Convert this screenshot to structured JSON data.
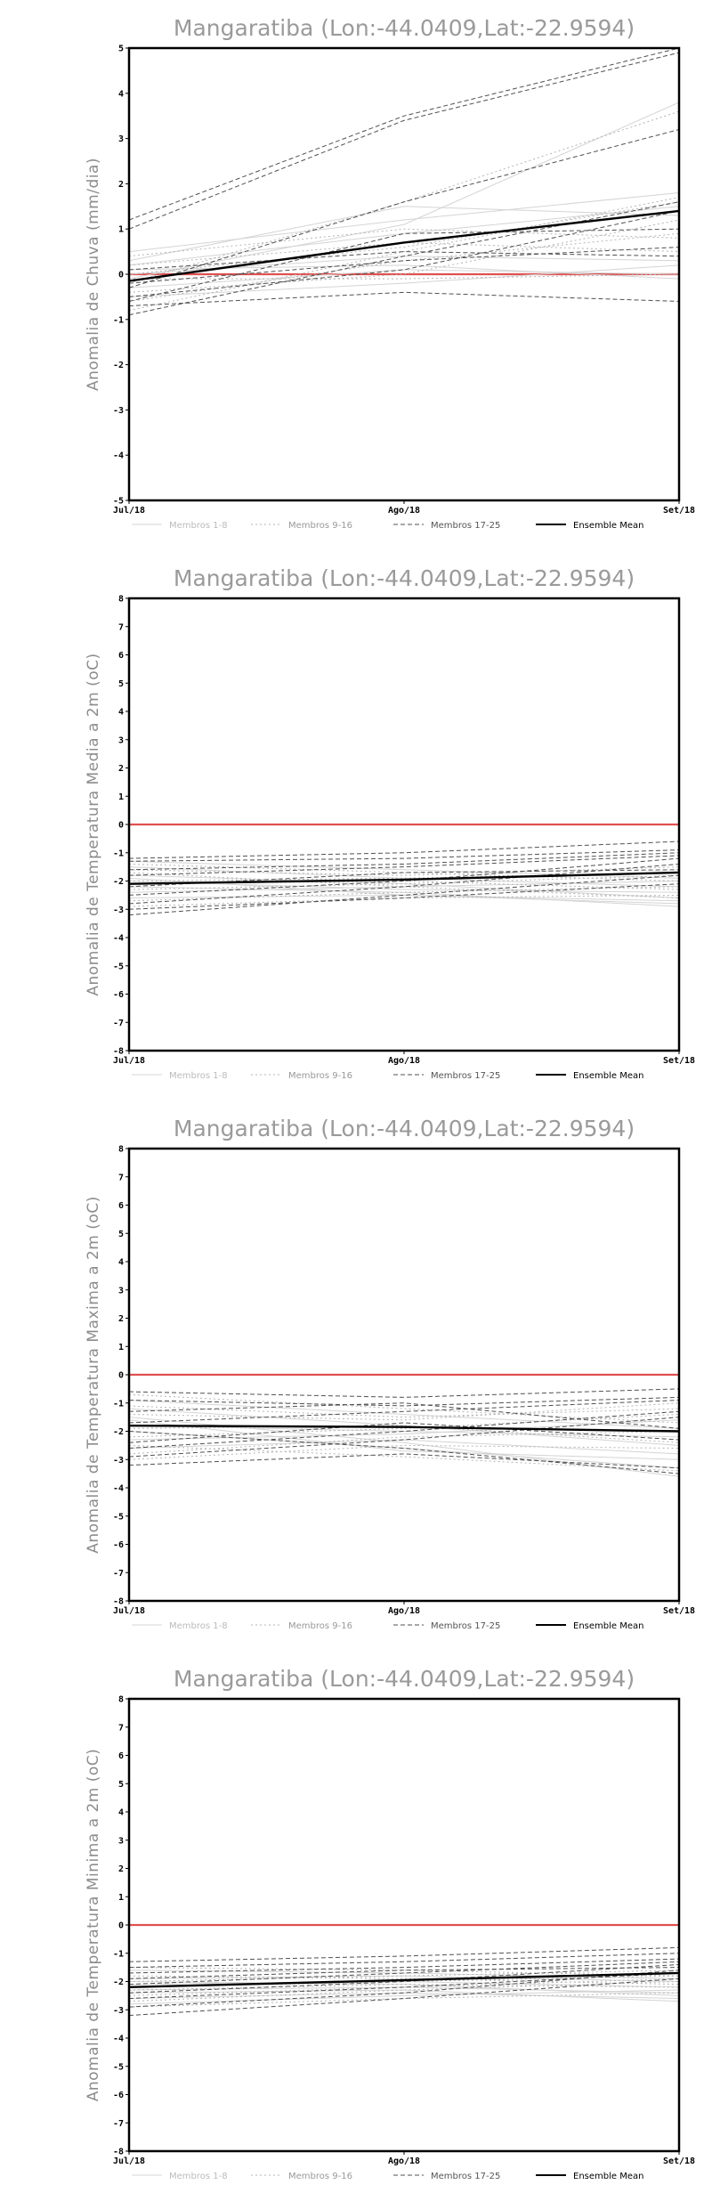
{
  "chart_data": [
    {
      "type": "line",
      "title": "Mangaratiba (Lon:-44.0409,Lat:-22.9594)",
      "ylabel": "Anomalia de Chuva (mm/dia)",
      "categories": [
        "Jul/18",
        "Ago/18",
        "Set/18"
      ],
      "ylim": [
        -5,
        5
      ],
      "yticks": [
        5,
        4,
        3,
        2,
        1,
        0,
        -1,
        -2,
        -3,
        -4,
        -5
      ],
      "grid": false,
      "legend_position": "bottom",
      "zero_line_color": "#e05050",
      "legend": [
        {
          "label": "Membros 1-8",
          "color": "#d4d4d4",
          "dash": "solid"
        },
        {
          "label": "Membros 9-16",
          "color": "#b4b4b4",
          "dash": "dotted"
        },
        {
          "label": "Membros 17-25",
          "color": "#505050",
          "dash": "dashed"
        },
        {
          "label": "Ensemble Mean",
          "color": "#000000",
          "dash": "solid"
        }
      ],
      "series": [
        {
          "group": 0,
          "values": [
            0.5,
            1.2,
            1.8
          ]
        },
        {
          "group": 0,
          "values": [
            0.2,
            0.9,
            1.5
          ]
        },
        {
          "group": 0,
          "values": [
            -0.1,
            1.1,
            3.8
          ]
        },
        {
          "group": 0,
          "values": [
            0.0,
            0.4,
            0.3
          ]
        },
        {
          "group": 0,
          "values": [
            -0.3,
            0.1,
            0.0
          ]
        },
        {
          "group": 0,
          "values": [
            0.3,
            1.5,
            1.3
          ]
        },
        {
          "group": 0,
          "values": [
            -0.5,
            -0.2,
            0.2
          ]
        },
        {
          "group": 0,
          "values": [
            0.1,
            0.2,
            -0.1
          ]
        },
        {
          "group": 1,
          "values": [
            -0.2,
            1.6,
            3.6
          ]
        },
        {
          "group": 1,
          "values": [
            0.0,
            0.6,
            1.6
          ]
        },
        {
          "group": 1,
          "values": [
            -0.6,
            0.3,
            0.9
          ]
        },
        {
          "group": 1,
          "values": [
            0.2,
            0.7,
            0.5
          ]
        },
        {
          "group": 1,
          "values": [
            -0.4,
            0.0,
            1.2
          ]
        },
        {
          "group": 1,
          "values": [
            0.4,
            1.0,
            0.8
          ]
        },
        {
          "group": 1,
          "values": [
            -0.1,
            -0.1,
            0.0
          ]
        },
        {
          "group": 1,
          "values": [
            -0.8,
            0.5,
            1.7
          ]
        },
        {
          "group": 2,
          "values": [
            1.2,
            3.5,
            5.0
          ]
        },
        {
          "group": 2,
          "values": [
            1.0,
            3.4,
            4.9
          ]
        },
        {
          "group": 2,
          "values": [
            -0.3,
            1.6,
            3.2
          ]
        },
        {
          "group": 2,
          "values": [
            -0.9,
            0.4,
            1.6
          ]
        },
        {
          "group": 2,
          "values": [
            -0.7,
            -0.4,
            -0.6
          ]
        },
        {
          "group": 2,
          "values": [
            -0.5,
            0.1,
            1.4
          ]
        },
        {
          "group": 2,
          "values": [
            -0.2,
            0.3,
            0.6
          ]
        },
        {
          "group": 2,
          "values": [
            -0.6,
            0.9,
            1.0
          ]
        },
        {
          "group": 2,
          "values": [
            0.1,
            0.5,
            0.4
          ]
        },
        {
          "group": 3,
          "values": [
            -0.15,
            0.7,
            1.4
          ]
        }
      ]
    },
    {
      "type": "line",
      "title": "Mangaratiba (Lon:-44.0409,Lat:-22.9594)",
      "ylabel": "Anomalia de Temperatura Media a 2m (oC)",
      "categories": [
        "Jul/18",
        "Ago/18",
        "Set/18"
      ],
      "ylim": [
        -8,
        8
      ],
      "yticks": [
        8,
        7,
        6,
        5,
        4,
        3,
        2,
        1,
        0,
        -1,
        -2,
        -3,
        -4,
        -5,
        -6,
        -7,
        -8
      ],
      "grid": false,
      "legend_position": "bottom",
      "zero_line_color": "#e05050",
      "legend": [
        {
          "label": "Membros 1-8",
          "color": "#d4d4d4",
          "dash": "solid"
        },
        {
          "label": "Membros 9-16",
          "color": "#b4b4b4",
          "dash": "dotted"
        },
        {
          "label": "Membros 17-25",
          "color": "#505050",
          "dash": "dashed"
        },
        {
          "label": "Ensemble Mean",
          "color": "#000000",
          "dash": "solid"
        }
      ],
      "series": [
        {
          "group": 0,
          "values": [
            -1.8,
            -2.1,
            -2.6
          ]
        },
        {
          "group": 0,
          "values": [
            -2.2,
            -2.4,
            -2.9
          ]
        },
        {
          "group": 0,
          "values": [
            -1.5,
            -1.9,
            -2.2
          ]
        },
        {
          "group": 0,
          "values": [
            -2.6,
            -2.5,
            -2.7
          ]
        },
        {
          "group": 0,
          "values": [
            -2.0,
            -2.3,
            -2.4
          ]
        },
        {
          "group": 0,
          "values": [
            -1.3,
            -1.6,
            -1.9
          ]
        },
        {
          "group": 0,
          "values": [
            -2.4,
            -2.2,
            -2.0
          ]
        },
        {
          "group": 0,
          "values": [
            -1.9,
            -2.5,
            -2.8
          ]
        },
        {
          "group": 1,
          "values": [
            -2.1,
            -2.0,
            -2.3
          ]
        },
        {
          "group": 1,
          "values": [
            -1.6,
            -1.8,
            -1.5
          ]
        },
        {
          "group": 1,
          "values": [
            -2.7,
            -2.4,
            -2.2
          ]
        },
        {
          "group": 1,
          "values": [
            -2.3,
            -2.1,
            -1.8
          ]
        },
        {
          "group": 1,
          "values": [
            -1.4,
            -1.7,
            -2.0
          ]
        },
        {
          "group": 1,
          "values": [
            -2.9,
            -2.6,
            -2.5
          ]
        },
        {
          "group": 1,
          "values": [
            -2.0,
            -1.9,
            -1.7
          ]
        },
        {
          "group": 1,
          "values": [
            -1.7,
            -2.2,
            -2.6
          ]
        },
        {
          "group": 2,
          "values": [
            -1.2,
            -1.0,
            -0.6
          ]
        },
        {
          "group": 2,
          "values": [
            -1.3,
            -1.2,
            -0.9
          ]
        },
        {
          "group": 2,
          "values": [
            -2.8,
            -2.2,
            -1.4
          ]
        },
        {
          "group": 2,
          "values": [
            -3.2,
            -2.5,
            -1.8
          ]
        },
        {
          "group": 2,
          "values": [
            -2.5,
            -2.0,
            -1.2
          ]
        },
        {
          "group": 2,
          "values": [
            -1.8,
            -1.5,
            -1.1
          ]
        },
        {
          "group": 2,
          "values": [
            -3.0,
            -2.6,
            -2.1
          ]
        },
        {
          "group": 2,
          "values": [
            -2.2,
            -1.7,
            -1.6
          ]
        },
        {
          "group": 2,
          "values": [
            -1.6,
            -1.4,
            -1.0
          ]
        },
        {
          "group": 3,
          "values": [
            -2.1,
            -1.95,
            -1.7
          ]
        }
      ]
    },
    {
      "type": "line",
      "title": "Mangaratiba (Lon:-44.0409,Lat:-22.9594)",
      "ylabel": "Anomalia de Temperatura Maxima a 2m (oC)",
      "categories": [
        "Jul/18",
        "Ago/18",
        "Set/18"
      ],
      "ylim": [
        -8,
        8
      ],
      "yticks": [
        8,
        7,
        6,
        5,
        4,
        3,
        2,
        1,
        0,
        -1,
        -2,
        -3,
        -4,
        -5,
        -6,
        -7,
        -8
      ],
      "grid": false,
      "legend_position": "bottom",
      "zero_line_color": "#e05050",
      "legend": [
        {
          "label": "Membros 1-8",
          "color": "#d4d4d4",
          "dash": "solid"
        },
        {
          "label": "Membros 9-16",
          "color": "#b4b4b4",
          "dash": "dotted"
        },
        {
          "label": "Membros 17-25",
          "color": "#505050",
          "dash": "dashed"
        },
        {
          "label": "Ensemble Mean",
          "color": "#000000",
          "dash": "solid"
        }
      ],
      "series": [
        {
          "group": 0,
          "values": [
            -1.5,
            -2.4,
            -3.6
          ]
        },
        {
          "group": 0,
          "values": [
            -2.0,
            -2.6,
            -3.3
          ]
        },
        {
          "group": 0,
          "values": [
            -1.2,
            -1.8,
            -2.5
          ]
        },
        {
          "group": 0,
          "values": [
            -2.6,
            -2.3,
            -2.8
          ]
        },
        {
          "group": 0,
          "values": [
            -1.8,
            -2.0,
            -2.2
          ]
        },
        {
          "group": 0,
          "values": [
            -0.9,
            -1.4,
            -1.9
          ]
        },
        {
          "group": 0,
          "values": [
            -2.3,
            -2.1,
            -1.6
          ]
        },
        {
          "group": 0,
          "values": [
            -1.6,
            -2.7,
            -3.0
          ]
        },
        {
          "group": 1,
          "values": [
            -1.9,
            -1.8,
            -2.4
          ]
        },
        {
          "group": 1,
          "values": [
            -1.1,
            -1.5,
            -1.2
          ]
        },
        {
          "group": 1,
          "values": [
            -2.8,
            -2.2,
            -2.0
          ]
        },
        {
          "group": 1,
          "values": [
            -2.2,
            -1.9,
            -1.4
          ]
        },
        {
          "group": 1,
          "values": [
            -0.7,
            -1.2,
            -1.7
          ]
        },
        {
          "group": 1,
          "values": [
            -3.0,
            -2.5,
            -2.6
          ]
        },
        {
          "group": 1,
          "values": [
            -1.4,
            -1.6,
            -1.0
          ]
        },
        {
          "group": 1,
          "values": [
            -2.5,
            -2.9,
            -3.4
          ]
        },
        {
          "group": 2,
          "values": [
            -0.6,
            -0.8,
            -0.5
          ]
        },
        {
          "group": 2,
          "values": [
            -0.9,
            -1.1,
            -0.8
          ]
        },
        {
          "group": 2,
          "values": [
            -2.9,
            -2.3,
            -1.5
          ]
        },
        {
          "group": 2,
          "values": [
            -3.2,
            -2.8,
            -3.3
          ]
        },
        {
          "group": 2,
          "values": [
            -2.4,
            -1.7,
            -2.3
          ]
        },
        {
          "group": 2,
          "values": [
            -1.7,
            -1.3,
            -0.9
          ]
        },
        {
          "group": 2,
          "values": [
            -2.0,
            -2.6,
            -3.5
          ]
        },
        {
          "group": 2,
          "values": [
            -1.3,
            -1.0,
            -1.9
          ]
        },
        {
          "group": 2,
          "values": [
            -2.6,
            -2.0,
            -1.3
          ]
        },
        {
          "group": 3,
          "values": [
            -1.8,
            -1.85,
            -2.0
          ]
        }
      ]
    },
    {
      "type": "line",
      "title": "Mangaratiba (Lon:-44.0409,Lat:-22.9594)",
      "ylabel": "Anomalia de Temperatura Minima a 2m (oC)",
      "categories": [
        "Jul/18",
        "Ago/18",
        "Set/18"
      ],
      "ylim": [
        -8,
        8
      ],
      "yticks": [
        8,
        7,
        6,
        5,
        4,
        3,
        2,
        1,
        0,
        -1,
        -2,
        -3,
        -4,
        -5,
        -6,
        -7,
        -8
      ],
      "grid": false,
      "legend_position": "bottom",
      "zero_line_color": "#e05050",
      "legend": [
        {
          "label": "Membros 1-8",
          "color": "#d4d4d4",
          "dash": "solid"
        },
        {
          "label": "Membros 9-16",
          "color": "#b4b4b4",
          "dash": "dotted"
        },
        {
          "label": "Membros 17-25",
          "color": "#505050",
          "dash": "dashed"
        },
        {
          "label": "Ensemble Mean",
          "color": "#000000",
          "dash": "solid"
        }
      ],
      "series": [
        {
          "group": 0,
          "values": [
            -2.3,
            -2.2,
            -2.4
          ]
        },
        {
          "group": 0,
          "values": [
            -2.6,
            -2.4,
            -2.6
          ]
        },
        {
          "group": 0,
          "values": [
            -1.9,
            -1.8,
            -2.0
          ]
        },
        {
          "group": 0,
          "values": [
            -2.8,
            -2.5,
            -2.3
          ]
        },
        {
          "group": 0,
          "values": [
            -2.1,
            -2.0,
            -2.2
          ]
        },
        {
          "group": 0,
          "values": [
            -1.6,
            -1.7,
            -1.9
          ]
        },
        {
          "group": 0,
          "values": [
            -2.4,
            -2.3,
            -2.7
          ]
        },
        {
          "group": 0,
          "values": [
            -2.0,
            -2.1,
            -2.5
          ]
        },
        {
          "group": 1,
          "values": [
            -2.2,
            -2.0,
            -1.8
          ]
        },
        {
          "group": 1,
          "values": [
            -1.8,
            -1.9,
            -2.1
          ]
        },
        {
          "group": 1,
          "values": [
            -2.7,
            -2.3,
            -2.0
          ]
        },
        {
          "group": 1,
          "values": [
            -2.5,
            -2.2,
            -1.9
          ]
        },
        {
          "group": 1,
          "values": [
            -1.5,
            -1.6,
            -1.8
          ]
        },
        {
          "group": 1,
          "values": [
            -2.9,
            -2.6,
            -2.4
          ]
        },
        {
          "group": 1,
          "values": [
            -2.0,
            -1.8,
            -1.6
          ]
        },
        {
          "group": 1,
          "values": [
            -2.3,
            -2.1,
            -2.2
          ]
        },
        {
          "group": 2,
          "values": [
            -1.3,
            -1.1,
            -0.8
          ]
        },
        {
          "group": 2,
          "values": [
            -1.5,
            -1.3,
            -1.0
          ]
        },
        {
          "group": 2,
          "values": [
            -3.2,
            -2.6,
            -1.9
          ]
        },
        {
          "group": 2,
          "values": [
            -2.9,
            -2.4,
            -1.6
          ]
        },
        {
          "group": 2,
          "values": [
            -2.4,
            -2.0,
            -1.4
          ]
        },
        {
          "group": 2,
          "values": [
            -1.7,
            -1.5,
            -1.2
          ]
        },
        {
          "group": 2,
          "values": [
            -2.6,
            -2.2,
            -1.7
          ]
        },
        {
          "group": 2,
          "values": [
            -2.1,
            -1.7,
            -1.3
          ]
        },
        {
          "group": 2,
          "values": [
            -1.9,
            -1.6,
            -1.5
          ]
        },
        {
          "group": 3,
          "values": [
            -2.2,
            -1.95,
            -1.7
          ]
        }
      ]
    }
  ]
}
